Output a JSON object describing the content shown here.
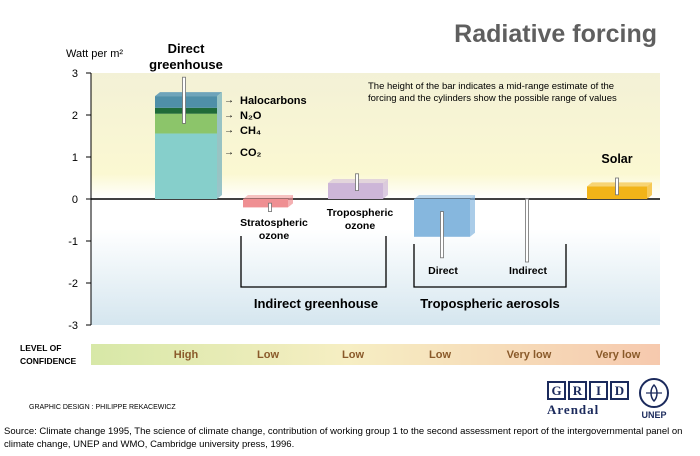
{
  "chart_data": {
    "type": "bar",
    "title": "Radiative forcing",
    "ylabel": "Watt per m²",
    "ylim": [
      -3,
      3
    ],
    "yticks": [
      "3",
      "2",
      "1",
      "0",
      "-1",
      "-2",
      "-3"
    ],
    "note_line1": "The height of the bar indicates a mid-range estimate of the",
    "note_line2": "forcing and the cylinders show the possible range of values",
    "direct_greenhouse": {
      "label_line1": "Direct",
      "label_line2": "greenhouse",
      "segments": [
        {
          "name": "CO₂",
          "value": 1.56,
          "color": "#86cfcb"
        },
        {
          "name": "CH₄",
          "value": 0.47,
          "color": "#8cc56a"
        },
        {
          "name": "N₂O",
          "value": 0.14,
          "color": "#1f6b38"
        },
        {
          "name": "Halocarbons",
          "value": 0.28,
          "color": "#4f8fa8"
        }
      ],
      "range": [
        1.8,
        2.9
      ]
    },
    "bars": [
      {
        "label_line1": "Stratospheric",
        "label_line2": "ozone",
        "value": -0.2,
        "range": [
          -0.3,
          -0.1
        ],
        "color": "#ef8f92"
      },
      {
        "label_line1": "Tropospheric",
        "label_line2": "ozone",
        "value": 0.38,
        "range": [
          0.2,
          0.6
        ],
        "color": "#cdb6d8"
      },
      {
        "label_line1": "Direct",
        "label_line2": "",
        "value": -0.9,
        "range": [
          -1.4,
          -0.3
        ],
        "color": "#86b7de"
      },
      {
        "label_line1": "Indirect",
        "label_line2": "",
        "value": 0.0,
        "range": [
          -1.5,
          0.0
        ],
        "color": "#9ec5e8"
      },
      {
        "label_line1": "Solar",
        "label_line2": "",
        "value": 0.3,
        "range": [
          0.1,
          0.5
        ],
        "color": "#f2b418"
      }
    ],
    "groups": [
      "Indirect greenhouse",
      "Tropospheric aerosols"
    ],
    "confidence_label_line1": "LEVEL OF",
    "confidence_label_line2": "CONFIDENCE",
    "confidence": [
      "High",
      "Low",
      "Low",
      "Low",
      "Very low",
      "Very low"
    ]
  },
  "logos": {
    "grid_letters": [
      "G",
      "R",
      "I",
      "D"
    ],
    "arendal": "Arendal",
    "unep": "UNEP"
  },
  "credit": "GRAPHIC DESIGN : PHILIPPE REKACEWICZ",
  "source": "Source: Climate change 1995, The science of climate change, contribution of working group 1 to the second assessment report of the intergovernmental panel on climate change, UNEP and WMO, Cambridge university press,  1996."
}
